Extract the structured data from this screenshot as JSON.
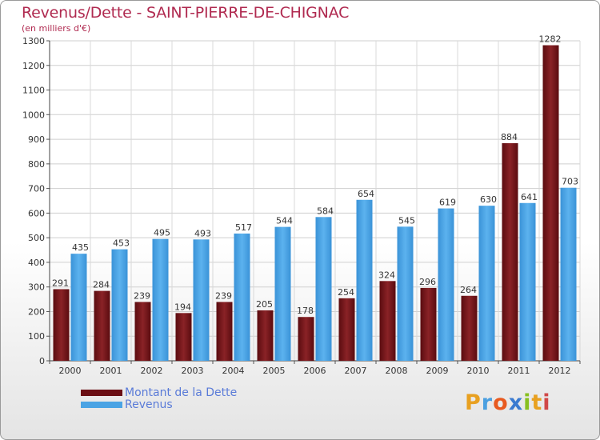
{
  "chart_data": {
    "type": "bar",
    "title": "Revenus/Dette - SAINT-PIERRE-DE-CHIGNAC",
    "subtitle": "(en milliers d'€)",
    "xlabel": "",
    "ylabel": "",
    "ylim": [
      0,
      1300
    ],
    "yticks": [
      0,
      100,
      200,
      300,
      400,
      500,
      600,
      700,
      800,
      900,
      1000,
      1100,
      1200,
      1300
    ],
    "grid": true,
    "categories": [
      "2000",
      "2001",
      "2002",
      "2003",
      "2004",
      "2005",
      "2006",
      "2007",
      "2008",
      "2009",
      "2010",
      "2011",
      "2012"
    ],
    "series": [
      {
        "name": "Montant de la Dette",
        "color": "#6b0f14",
        "values": [
          291,
          284,
          239,
          194,
          239,
          205,
          178,
          254,
          324,
          296,
          264,
          884,
          1282
        ]
      },
      {
        "name": "Revenus",
        "color": "#4aa3e4",
        "values": [
          435,
          453,
          495,
          493,
          517,
          544,
          584,
          654,
          545,
          619,
          630,
          641,
          703
        ]
      }
    ],
    "legend_position": "bottom-left"
  },
  "logo": {
    "letters": [
      "P",
      "r",
      "o",
      "x",
      "i",
      "t",
      "i"
    ],
    "colors": [
      "#e8a020",
      "#4a9fe0",
      "#e85a20",
      "#3a7ad0",
      "#88c020",
      "#e8a020",
      "#d04848"
    ]
  }
}
